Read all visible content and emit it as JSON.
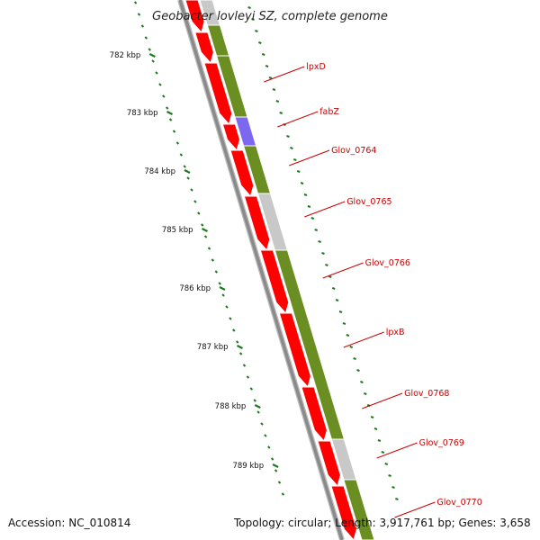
{
  "title": "Geobacter lovleyi SZ, complete genome",
  "footer": {
    "accession": "Accession: NC_010814",
    "summary": "Topology: circular; Length: 3,917,761 bp; Genes: 3,658"
  },
  "colors": {
    "backbone": "#8a8a8a",
    "cds_red": "#ff0000",
    "gene_green": "#6b8e23",
    "gene_purple": "#7b68ee",
    "gene_grey": "#c8c8c8",
    "tick_green": "#1e7a1e",
    "label_red": "#cc0000"
  },
  "scale": {
    "ticks": [
      {
        "label": "782 kbp"
      },
      {
        "label": "783 kbp"
      },
      {
        "label": "784 kbp"
      },
      {
        "label": "785 kbp"
      },
      {
        "label": "786 kbp"
      },
      {
        "label": "787 kbp"
      },
      {
        "label": "788 kbp"
      },
      {
        "label": "789 kbp"
      }
    ]
  },
  "genes": [
    {
      "label": "lpxD"
    },
    {
      "label": "fabZ"
    },
    {
      "label": "Glov_0764"
    },
    {
      "label": "Glov_0765"
    },
    {
      "label": "Glov_0766"
    },
    {
      "label": "lpxB"
    },
    {
      "label": "Glov_0768"
    },
    {
      "label": "Glov_0769"
    },
    {
      "label": "Glov_0770"
    }
  ]
}
